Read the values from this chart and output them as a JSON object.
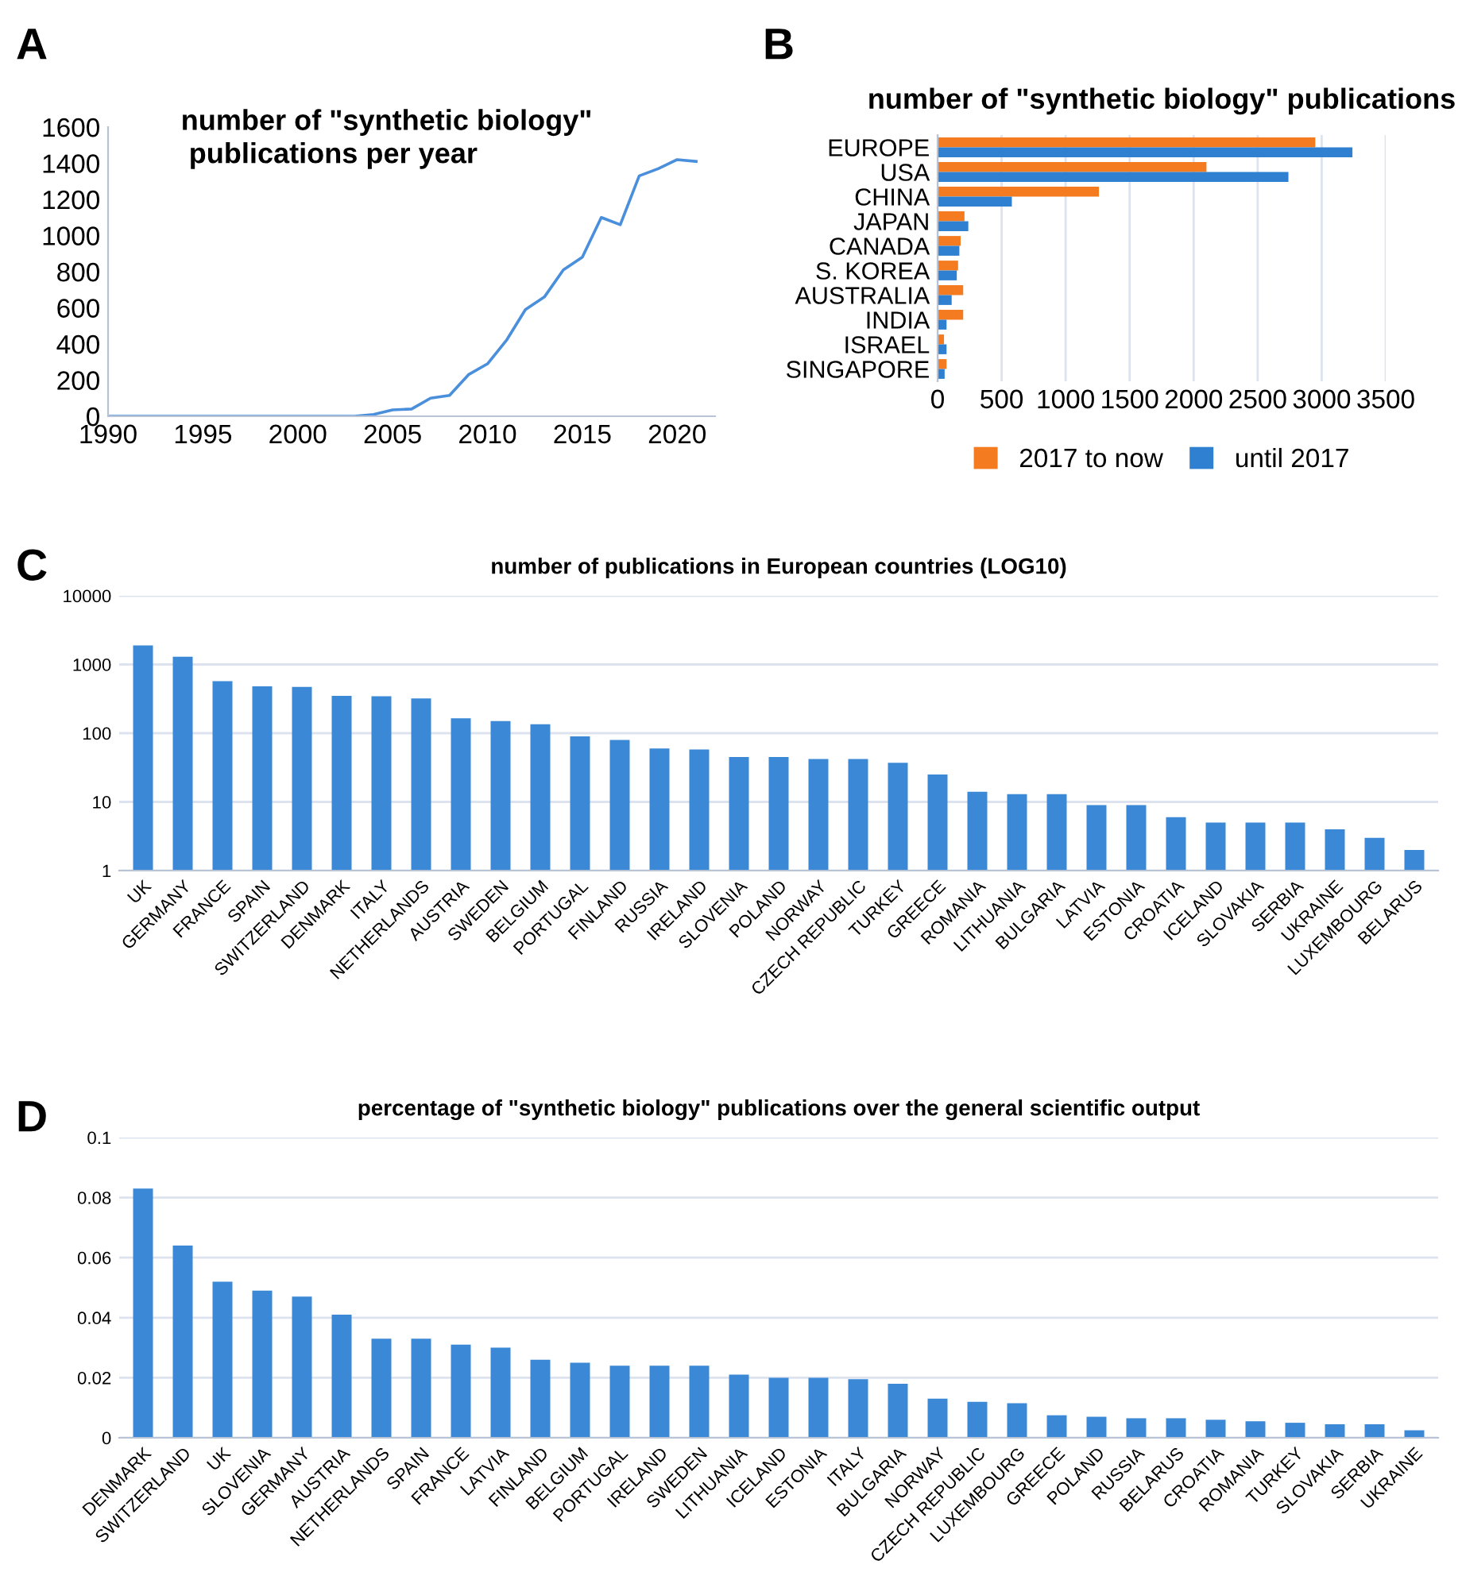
{
  "chart_data": [
    {
      "type": "line",
      "title": "number of \"synthetic biology\"\n publications per year",
      "annotations": [
        "A"
      ],
      "x": [
        1990,
        1991,
        1992,
        1993,
        1994,
        1995,
        1996,
        1997,
        1998,
        1999,
        2000,
        2001,
        2002,
        2003,
        2004,
        2005,
        2006,
        2007,
        2008,
        2009,
        2010,
        2011,
        2012,
        2013,
        2014,
        2015,
        2016,
        2017,
        2018,
        2019,
        2020,
        2021
      ],
      "series": [
        {
          "color": "#4a8fdc",
          "values": [
            0,
            0,
            0,
            0,
            0,
            0,
            0,
            0,
            0,
            0,
            0,
            0,
            0,
            0,
            10,
            35,
            40,
            100,
            115,
            230,
            290,
            420,
            590,
            660,
            810,
            880,
            1100,
            1060,
            1330,
            1370,
            1420,
            1410
          ]
        }
      ],
      "xlim": [
        1990,
        2022
      ],
      "xticks": [
        1990,
        1995,
        2000,
        2005,
        2010,
        2015,
        2020
      ],
      "ylim": [
        0,
        1600
      ],
      "yticks": [
        0,
        200,
        400,
        600,
        800,
        1000,
        1200,
        1400,
        1600
      ],
      "grid": false,
      "legend": false
    },
    {
      "type": "bar",
      "orientation": "horizontal",
      "title": "number of \"synthetic biology\" publications",
      "annotations": [
        "B"
      ],
      "categories": [
        "EUROPE",
        "USA",
        "CHINA",
        "JAPAN",
        "CANADA",
        "S. KOREA",
        "AUSTRALIA",
        "INDIA",
        "ISRAEL",
        "SINGAPORE"
      ],
      "series": [
        {
          "name": "2017 to now",
          "color": "#f47b20",
          "values": [
            2950,
            2100,
            1260,
            210,
            180,
            160,
            200,
            200,
            50,
            70
          ]
        },
        {
          "name": "until 2017",
          "color": "#2f80d0",
          "values": [
            3240,
            2740,
            580,
            240,
            170,
            150,
            110,
            70,
            70,
            55
          ]
        }
      ],
      "xlim": [
        0,
        3500
      ],
      "xticks": [
        0,
        500,
        1000,
        1500,
        2000,
        2500,
        3000,
        3500
      ],
      "grid": "x",
      "legend": "bottom"
    },
    {
      "type": "bar",
      "title": "number of publications in European countries (LOG10)",
      "annotations": [
        "C"
      ],
      "categories": [
        "UK",
        "GERMANY",
        "FRANCE",
        "SPAIN",
        "SWITZERLAND",
        "DENMARK",
        "ITALY",
        "NETHERLANDS",
        "AUSTRIA",
        "SWEDEN",
        "BELGIUM",
        "PORTUGAL",
        "FINLAND",
        "RUSSIA",
        "IRELAND",
        "SLOVENIA",
        "POLAND",
        "NORWAY",
        "CZECH REPUBLIC",
        "TURKEY",
        "GREECE",
        "ROMANIA",
        "LITHUANIA",
        "BULGARIA",
        "LATVIA",
        "ESTONIA",
        "CROATIA",
        "ICELAND",
        "SLOVAKIA",
        "SERBIA",
        "UKRAINE",
        "LUXEMBOURG",
        "BELARUS"
      ],
      "series": [
        {
          "color": "#3a88d6",
          "values": [
            1900,
            1300,
            570,
            480,
            470,
            350,
            345,
            320,
            165,
            150,
            135,
            90,
            80,
            60,
            58,
            45,
            45,
            42,
            42,
            37,
            25,
            14,
            13,
            13,
            9,
            9,
            6,
            5,
            5,
            5,
            4,
            3,
            2
          ]
        }
      ],
      "log": true,
      "ylim": [
        1,
        10000
      ],
      "yticks": [
        1,
        10,
        100,
        1000,
        10000
      ],
      "grid": "y",
      "legend": false
    },
    {
      "type": "bar",
      "title": "percentage of \"synthetic biology\" publications over the general scientific output",
      "annotations": [
        "D"
      ],
      "categories": [
        "DENMARK",
        "SWITZERLAND",
        "UK",
        "SLOVENIA",
        "GERMANY",
        "AUSTRIA",
        "NETHERLANDS",
        "SPAIN",
        "FRANCE",
        "LATVIA",
        "FINLAND",
        "BELGIUM",
        "PORTUGAL",
        "IRELAND",
        "SWEDEN",
        "LITHUANIA",
        "ICELAND",
        "ESTONIA",
        "ITALY",
        "BULGARIA",
        "NORWAY",
        "CZECH REPUBLIC",
        "LUXEMBOURG",
        "GREECE",
        "POLAND",
        "RUSSIA",
        "BELARUS",
        "CROATIA",
        "ROMANIA",
        "TURKEY",
        "SLOVAKIA",
        "SERBIA",
        "UKRAINE"
      ],
      "series": [
        {
          "color": "#3a88d6",
          "values": [
            0.083,
            0.064,
            0.052,
            0.049,
            0.047,
            0.041,
            0.033,
            0.033,
            0.031,
            0.03,
            0.026,
            0.025,
            0.024,
            0.024,
            0.024,
            0.021,
            0.02,
            0.02,
            0.0195,
            0.018,
            0.013,
            0.012,
            0.0115,
            0.0075,
            0.007,
            0.0065,
            0.0065,
            0.006,
            0.0055,
            0.005,
            0.0045,
            0.0045,
            0.0025
          ]
        }
      ],
      "ylim": [
        0,
        0.1
      ],
      "yticks": [
        0,
        {
          "value": 0.02,
          "label": "0.02"
        },
        {
          "value": 0.04,
          "label": "0.04"
        },
        {
          "value": 0.06,
          "label": "0.06"
        },
        {
          "value": 0.08,
          "label": "0.08"
        },
        {
          "value": 0.1,
          "label": "0.1"
        }
      ],
      "grid": "y",
      "legend": false
    }
  ]
}
